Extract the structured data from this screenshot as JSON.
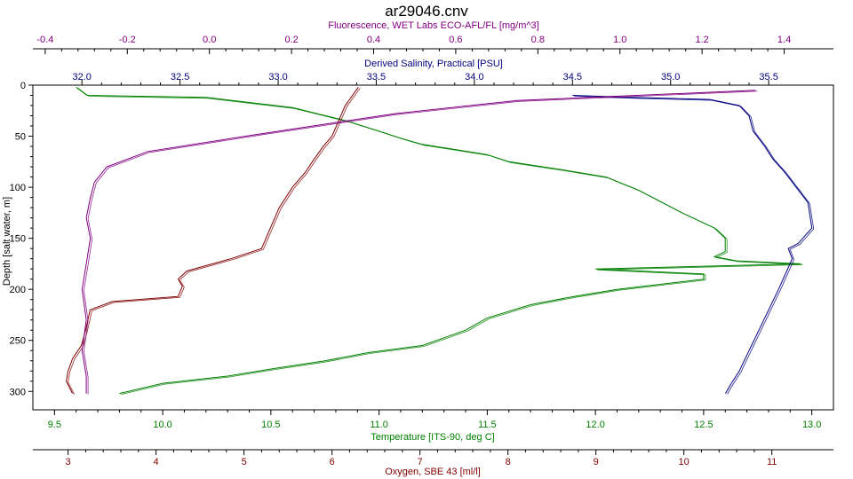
{
  "chart_data": {
    "type": "line",
    "title": "ar29046.cnv",
    "grid": false,
    "legend": "none",
    "y_axis": {
      "label": "Depth [salt water, m]",
      "lim": [
        0,
        318
      ],
      "inverted": true,
      "ticks": [
        0,
        50,
        100,
        150,
        200,
        250,
        300
      ],
      "color": "#000000"
    },
    "x_axes": [
      {
        "id": "fluor",
        "position": "top",
        "label": "Fluorescence, WET Labs ECO-AFL/FL [mg/m^3]",
        "lim": [
          -0.43,
          1.52
        ],
        "ticks": [
          -0.4,
          -0.2,
          0.0,
          0.2,
          0.4,
          0.6,
          0.8,
          1.0,
          1.2,
          1.4
        ],
        "tick_labels": [
          "-0.4",
          "-0.2",
          "0.0",
          "0.2",
          "0.4",
          "0.6",
          "0.8",
          "1.0",
          "1.2",
          "1.4"
        ],
        "color": "#800080"
      },
      {
        "id": "sal",
        "position": "top",
        "label": "Derived Salinity, Practical [PSU]",
        "lim": [
          31.75,
          35.83
        ],
        "ticks": [
          32.0,
          32.5,
          33.0,
          33.5,
          34.0,
          34.5,
          35.0,
          35.5
        ],
        "tick_labels": [
          "32.0",
          "32.5",
          "33.0",
          "33.5",
          "34.0",
          "34.5",
          "35.0",
          "35.5"
        ],
        "color": "#000080"
      },
      {
        "id": "temp",
        "position": "bottom",
        "label": "Temperature [ITS-90, deg C]",
        "lim": [
          9.4,
          13.1
        ],
        "ticks": [
          9.5,
          10.0,
          10.5,
          11.0,
          11.5,
          12.0,
          12.5,
          13.0
        ],
        "tick_labels": [
          "9.5",
          "10.0",
          "10.5",
          "11.0",
          "11.5",
          "12.0",
          "12.5",
          "13.0"
        ],
        "color": "#008000"
      },
      {
        "id": "oxy",
        "position": "bottom",
        "label": "Oxygen, SBE 43 [ml/l]",
        "lim": [
          2.6,
          11.7
        ],
        "ticks": [
          3,
          4,
          5,
          6,
          7,
          8,
          9,
          10,
          11
        ],
        "tick_labels": [
          "3",
          "4",
          "5",
          "6",
          "7",
          "8",
          "9",
          "10",
          "11"
        ],
        "color": "#800000"
      }
    ],
    "series": [
      {
        "axis": "temp",
        "color": "#008000",
        "x": [
          9.6,
          9.65,
          10.2,
          10.6,
          10.85,
          11.0,
          11.1,
          11.2,
          11.35,
          11.5,
          11.6,
          11.85,
          12.05,
          12.2,
          12.4,
          12.55,
          12.6,
          12.6,
          12.6,
          12.55,
          12.65,
          12.95,
          12.0,
          12.5,
          12.5,
          12.1,
          11.9,
          11.7,
          11.5,
          11.4,
          11.2,
          10.95,
          10.75,
          10.5,
          10.3,
          10.0,
          9.8
        ],
        "y": [
          2,
          10,
          12,
          22,
          35,
          45,
          52,
          58,
          63,
          68,
          75,
          83,
          90,
          103,
          125,
          140,
          150,
          160,
          163,
          168,
          172,
          175,
          180,
          185,
          190,
          200,
          207,
          215,
          228,
          240,
          255,
          262,
          270,
          278,
          285,
          292,
          302
        ]
      },
      {
        "axis": "sal",
        "color": "#000080",
        "x": [
          34.5,
          34.8,
          35.2,
          35.35,
          35.4,
          35.42,
          35.48,
          35.52,
          35.58,
          35.7,
          35.72,
          35.65,
          35.6,
          35.62,
          35.55,
          35.5,
          35.45,
          35.4,
          35.35,
          35.3,
          35.28
        ],
        "y": [
          10,
          12,
          14,
          20,
          30,
          45,
          60,
          72,
          85,
          115,
          140,
          155,
          160,
          170,
          200,
          220,
          240,
          260,
          280,
          295,
          302
        ]
      },
      {
        "axis": "oxy",
        "color": "#800000",
        "x": [
          6.3,
          6.15,
          6.05,
          6.0,
          5.9,
          5.8,
          5.7,
          5.55,
          5.4,
          5.3,
          5.2,
          4.85,
          4.35,
          4.25,
          4.3,
          4.25,
          3.5,
          3.25,
          3.2,
          3.15,
          3.05,
          3.0,
          2.98,
          3.05
        ],
        "y": [
          2,
          20,
          40,
          50,
          60,
          72,
          85,
          100,
          120,
          140,
          160,
          170,
          182,
          190,
          197,
          207,
          212,
          220,
          240,
          255,
          268,
          280,
          290,
          302
        ]
      },
      {
        "axis": "fluor",
        "color": "#800080",
        "x": [
          1.33,
          0.75,
          0.45,
          0.12,
          -0.15,
          -0.25,
          -0.28,
          -0.29,
          -0.3,
          -0.29,
          -0.3,
          -0.31,
          -0.3,
          -0.31,
          -0.3,
          -0.3
        ],
        "y": [
          5,
          15,
          28,
          48,
          65,
          80,
          95,
          110,
          130,
          150,
          175,
          200,
          230,
          260,
          285,
          302
        ]
      }
    ]
  }
}
